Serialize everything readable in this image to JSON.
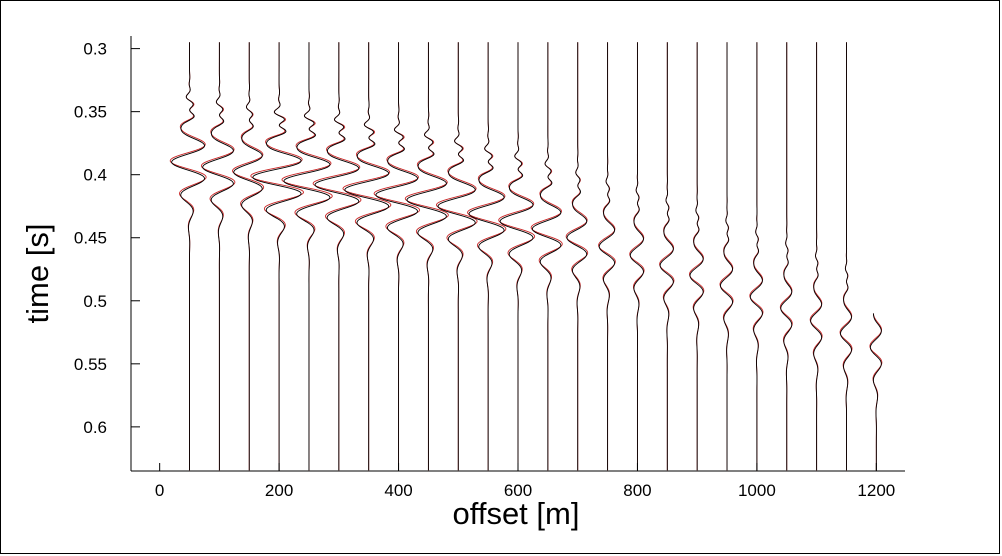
{
  "chart_data": {
    "type": "line",
    "plot_kind": "seismic wiggle traces (two overlaid series per trace)",
    "xlabel": "offset [m]",
    "ylabel": "time [s]",
    "xlim": [
      -48,
      1248
    ],
    "ylim": [
      0.635,
      0.29
    ],
    "y_inverted": true,
    "grid": false,
    "x_ticks": [
      {
        "value": 0,
        "label": "0"
      },
      {
        "value": 200,
        "label": "200"
      },
      {
        "value": 400,
        "label": "400"
      },
      {
        "value": 600,
        "label": "600"
      },
      {
        "value": 800,
        "label": "800"
      },
      {
        "value": 1000,
        "label": "1000"
      },
      {
        "value": 1200,
        "label": "1200"
      }
    ],
    "y_ticks": [
      {
        "value": 0.3,
        "label": "0.3"
      },
      {
        "value": 0.35,
        "label": "0.35"
      },
      {
        "value": 0.4,
        "label": "0.4"
      },
      {
        "value": 0.45,
        "label": "0.45"
      },
      {
        "value": 0.5,
        "label": "0.5"
      },
      {
        "value": 0.55,
        "label": "0.55"
      },
      {
        "value": 0.6,
        "label": "0.6"
      }
    ],
    "series_colors": [
      "#000000",
      "#c00000"
    ],
    "traces": {
      "offsets": [
        50,
        100,
        150,
        200,
        250,
        300,
        350,
        400,
        450,
        500,
        550,
        600,
        650,
        700,
        750,
        800,
        850,
        900,
        950,
        1000,
        1050,
        1100,
        1150,
        1200
      ],
      "arrival_time": [
        0.39,
        0.394,
        0.398,
        0.402,
        0.405,
        0.408,
        0.412,
        0.416,
        0.42,
        0.425,
        0.431,
        0.437,
        0.443,
        0.45,
        0.457,
        0.464,
        0.472,
        0.48,
        0.488,
        0.497,
        0.506,
        0.516,
        0.526,
        0.537
      ],
      "peak_amplitude_m": [
        30,
        28,
        26,
        44,
        42,
        40,
        40,
        38,
        36,
        34,
        32,
        30,
        26,
        18,
        14,
        12,
        12,
        12,
        11,
        11,
        10,
        10,
        10,
        10
      ],
      "trace_top_time": [
        0.295,
        0.295,
        0.295,
        0.295,
        0.295,
        0.295,
        0.295,
        0.295,
        0.295,
        0.295,
        0.295,
        0.295,
        0.295,
        0.295,
        0.295,
        0.295,
        0.295,
        0.295,
        0.295,
        0.295,
        0.295,
        0.295,
        0.295,
        0.51
      ],
      "trace_bottom_time": [
        0.635,
        0.635,
        0.635,
        0.635,
        0.635,
        0.635,
        0.635,
        0.635,
        0.635,
        0.635,
        0.635,
        0.635,
        0.635,
        0.635,
        0.635,
        0.635,
        0.635,
        0.635,
        0.635,
        0.635,
        0.635,
        0.635,
        0.635,
        0.635
      ]
    }
  }
}
